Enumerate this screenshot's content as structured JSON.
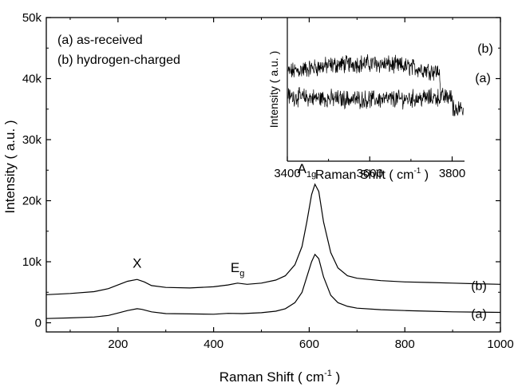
{
  "chart_data": {
    "type": "line",
    "legend_text": [
      "(a) as-received",
      "(b) hydrogen-charged"
    ],
    "xlabel_main": "Raman Shift ( cm",
    "xlabel_sup": "-1",
    "xlabel_close": " )",
    "ylabel": "Intensity ( a.u. )",
    "xlim": [
      50,
      1000
    ],
    "ylim": [
      -1500,
      50000
    ],
    "x_ticks": [
      200,
      400,
      600,
      800,
      1000
    ],
    "x_tick_labels": [
      "200",
      "400",
      "600",
      "800",
      "1000"
    ],
    "y_ticks": [
      0,
      10000,
      20000,
      30000,
      40000,
      50000
    ],
    "y_tick_labels": [
      "0",
      "10k",
      "20k",
      "30k",
      "40k",
      "50k"
    ],
    "series": [
      {
        "name": "(a)",
        "x": [
          50,
          100,
          150,
          180,
          200,
          220,
          240,
          250,
          270,
          300,
          350,
          400,
          430,
          460,
          500,
          530,
          550,
          570,
          585,
          595,
          605,
          612,
          620,
          630,
          645,
          660,
          680,
          700,
          750,
          800,
          850,
          900,
          950,
          1000
        ],
        "y": [
          700,
          800,
          950,
          1200,
          1600,
          2000,
          2300,
          2200,
          1800,
          1500,
          1450,
          1400,
          1550,
          1500,
          1650,
          1900,
          2300,
          3300,
          5000,
          7500,
          10000,
          11200,
          10500,
          7500,
          4500,
          3300,
          2700,
          2400,
          2150,
          2000,
          1900,
          1800,
          1750,
          1700
        ]
      },
      {
        "name": "(b)",
        "x": [
          50,
          100,
          150,
          180,
          200,
          220,
          240,
          255,
          270,
          300,
          350,
          400,
          430,
          450,
          470,
          500,
          530,
          550,
          570,
          585,
          595,
          605,
          612,
          620,
          630,
          645,
          660,
          680,
          700,
          750,
          800,
          850,
          900,
          950,
          1000
        ],
        "y": [
          4600,
          4800,
          5100,
          5600,
          6200,
          6800,
          7100,
          6700,
          6100,
          5800,
          5700,
          5900,
          6200,
          6500,
          6300,
          6500,
          7000,
          7700,
          9500,
          12500,
          16500,
          21000,
          22700,
          21500,
          16500,
          11500,
          9000,
          7700,
          7300,
          6900,
          6700,
          6600,
          6500,
          6400,
          6300
        ]
      }
    ],
    "annotations": [
      {
        "text": "X",
        "sub": "",
        "x": 240,
        "y": 9000
      },
      {
        "text": "E",
        "sub": "g",
        "x": 450,
        "y": 8300
      },
      {
        "text": "A",
        "sub": "1g",
        "x": 595,
        "y": 24500
      }
    ],
    "series_end_labels": [
      {
        "text": "(b)",
        "y": 6300
      },
      {
        "text": "(a)",
        "y": 1700
      }
    ],
    "inset": {
      "xlabel_main": "Raman Shift ( cm",
      "xlabel_sup": "-1",
      "xlabel_close": " )",
      "ylabel": "Intensity ( a.u. )",
      "xlim": [
        3400,
        3830
      ],
      "x_ticks": [
        3400,
        3600,
        3800
      ],
      "x_tick_labels": [
        "3400",
        "3600",
        "3800"
      ],
      "series": [
        {
          "name": "(b)",
          "x_range": [
            3400,
            3770
          ],
          "level": 0.62,
          "amplitude": 0.05,
          "trend": 0.06
        },
        {
          "name": "(a)",
          "x_range": [
            3400,
            3800
          ],
          "level": 0.45,
          "amplitude": 0.05,
          "trend": -0.02
        }
      ],
      "end_labels": [
        "(b)",
        "(a)"
      ]
    }
  }
}
